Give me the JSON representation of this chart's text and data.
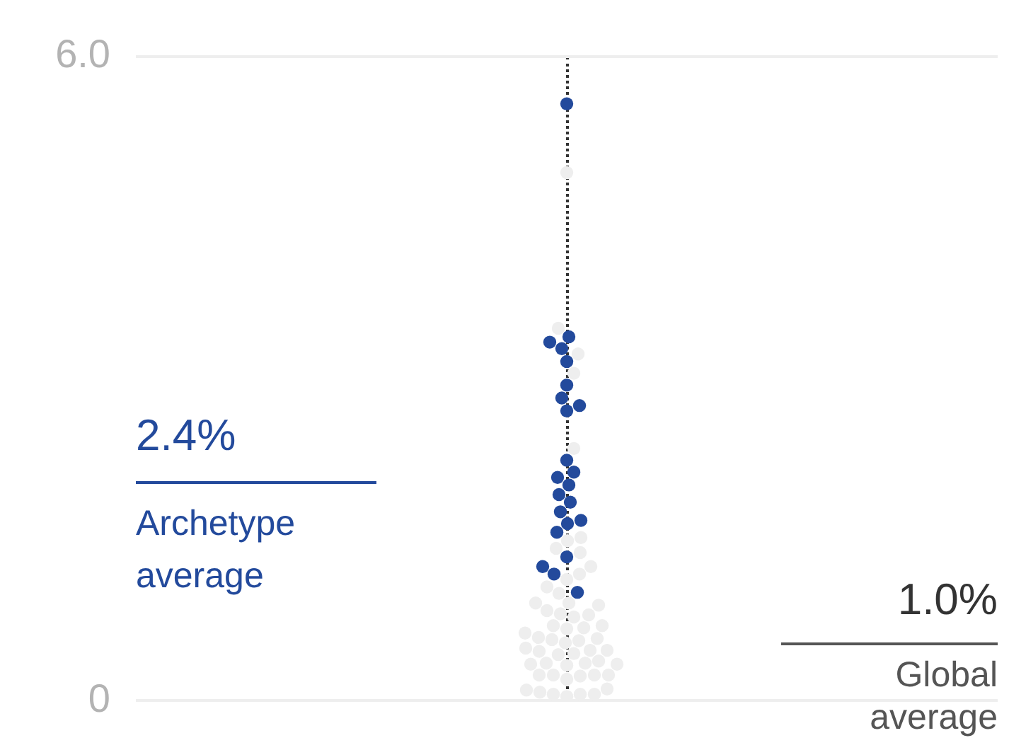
{
  "chart_data": {
    "type": "scatter",
    "annotations": [
      "2.4%",
      "Archetype average",
      "1.0%",
      "Global average"
    ],
    "categories": [
      null
    ],
    "series": [
      {
        "color": "#eeeeee",
        "x": [
          null,
          null,
          null,
          null,
          null,
          null,
          null,
          null,
          null,
          null,
          null,
          null,
          null,
          null,
          null,
          null,
          null,
          null,
          null,
          null,
          null,
          null,
          null,
          null,
          null,
          null,
          null,
          null,
          null,
          null,
          null,
          null,
          null,
          null,
          null,
          null,
          null,
          null,
          null,
          null,
          null,
          null,
          null,
          null,
          null,
          null,
          null,
          null,
          null,
          null,
          null,
          null,
          null,
          null,
          null,
          null
        ],
        "values": [
          4.92,
          3.47,
          3.23,
          3.05,
          2.35,
          1.52,
          1.49,
          1.42,
          1.38,
          1.25,
          1.18,
          1.13,
          1.06,
          1.0,
          0.89,
          0.91,
          0.91,
          0.84,
          0.78,
          0.81,
          0.8,
          0.67,
          0.68,
          0.7,
          0.7,
          0.63,
          0.56,
          0.57,
          0.58,
          0.59,
          0.54,
          0.44,
          0.46,
          0.47,
          0.47,
          0.49,
          0.43,
          0.33,
          0.34,
          0.35,
          0.35,
          0.37,
          0.34,
          0.23,
          0.24,
          0.24,
          0.24,
          0.24,
          0.2,
          0.06,
          0.04,
          0.06,
          0.06,
          0.08,
          0.11,
          0.1
        ]
      },
      {
        "color": "#234a9c",
        "x": [
          null,
          null,
          null,
          null,
          null,
          null,
          null,
          null,
          null,
          null,
          null,
          null,
          null,
          null,
          null,
          null,
          null,
          null,
          null,
          null,
          null,
          null,
          null
        ],
        "values": [
          5.56,
          3.39,
          3.34,
          3.28,
          3.16,
          2.94,
          2.82,
          2.75,
          2.7,
          2.24,
          2.13,
          2.08,
          2.01,
          1.92,
          1.85,
          1.76,
          1.68,
          1.65,
          1.57,
          1.34,
          1.25,
          1.18,
          1.01
        ]
      }
    ],
    "ylim": [
      0,
      6
    ],
    "yticks": [
      0,
      {
        "value": 6,
        "label": "6.0"
      }
    ],
    "tick_labels": "y",
    "grid": "y",
    "legend": false,
    "marker": "circle"
  }
}
